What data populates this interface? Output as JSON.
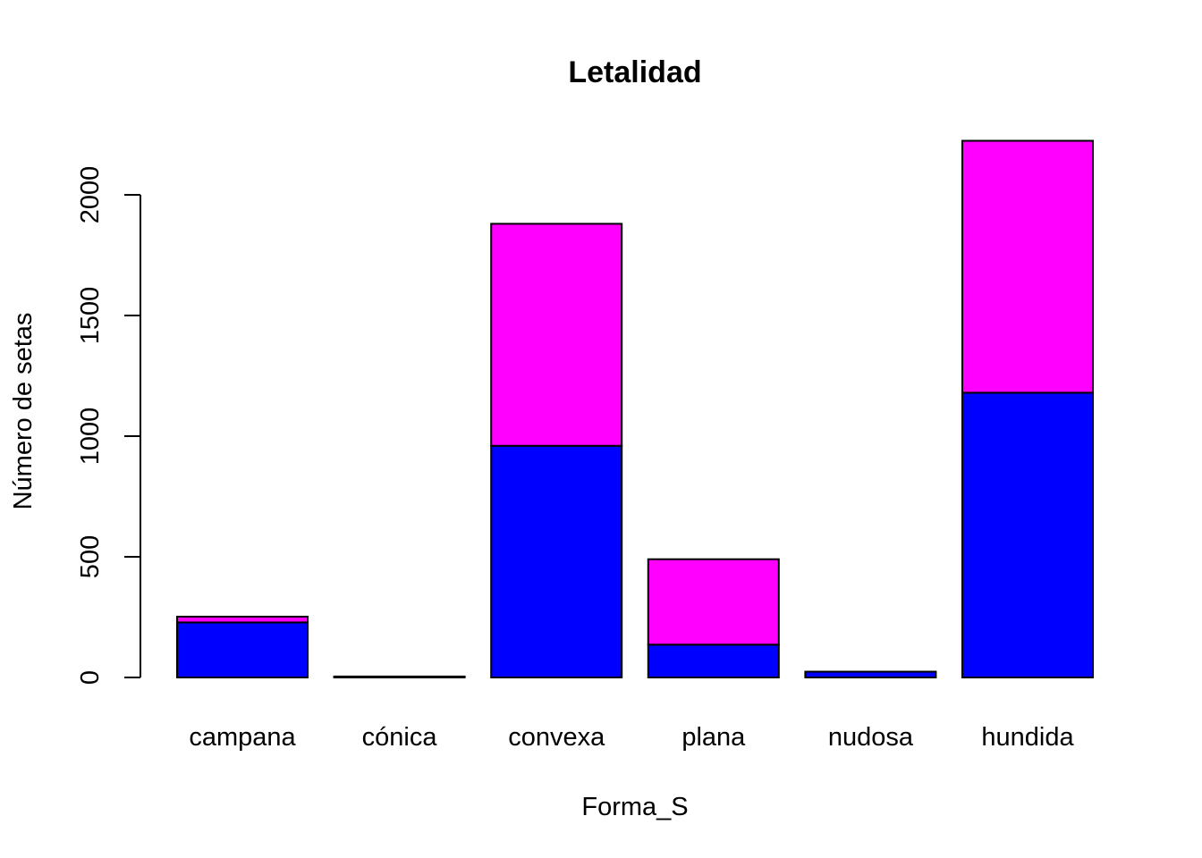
{
  "chart_data": {
    "type": "bar",
    "stacked": true,
    "title": "Letalidad",
    "xlabel": "Forma_S",
    "ylabel": "Número de setas",
    "categories": [
      "campana",
      "cónica",
      "convexa",
      "plana",
      "nudosa",
      "hundida"
    ],
    "series": [
      {
        "values": [
          228,
          0,
          960,
          136,
          24,
          1180
        ],
        "color": "#0000FF"
      },
      {
        "values": [
          24,
          4,
          920,
          354,
          0,
          1044
        ],
        "color": "#FF00FF"
      }
    ],
    "yticks": [
      0,
      500,
      1000,
      1500,
      2000
    ],
    "ylim": [
      0,
      2224
    ],
    "grid": false,
    "legend": "none"
  }
}
